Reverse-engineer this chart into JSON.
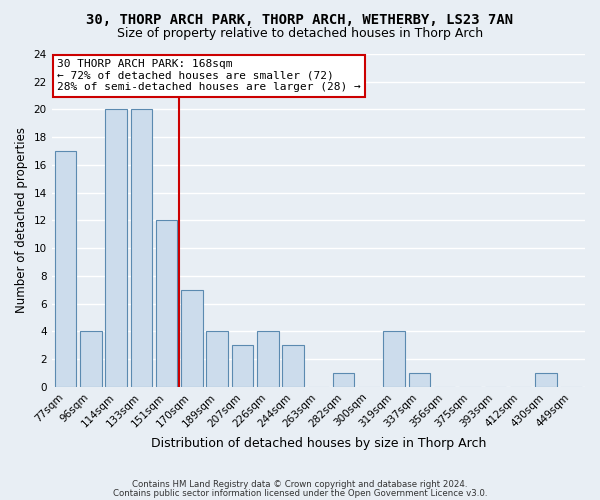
{
  "title": "30, THORP ARCH PARK, THORP ARCH, WETHERBY, LS23 7AN",
  "subtitle": "Size of property relative to detached houses in Thorp Arch",
  "xlabel": "Distribution of detached houses by size in Thorp Arch",
  "ylabel": "Number of detached properties",
  "bin_labels": [
    "77sqm",
    "96sqm",
    "114sqm",
    "133sqm",
    "151sqm",
    "170sqm",
    "189sqm",
    "207sqm",
    "226sqm",
    "244sqm",
    "263sqm",
    "282sqm",
    "300sqm",
    "319sqm",
    "337sqm",
    "356sqm",
    "375sqm",
    "393sqm",
    "412sqm",
    "430sqm",
    "449sqm"
  ],
  "bar_values": [
    17,
    4,
    20,
    20,
    12,
    7,
    4,
    3,
    4,
    3,
    0,
    1,
    0,
    4,
    1,
    0,
    0,
    0,
    0,
    1,
    0
  ],
  "bar_color": "#ccdcec",
  "bar_edge_color": "#5b8ab0",
  "vline_index": 5,
  "vline_color": "#cc0000",
  "annotation_title": "30 THORP ARCH PARK: 168sqm",
  "annotation_line1": "← 72% of detached houses are smaller (72)",
  "annotation_line2": "28% of semi-detached houses are larger (28) →",
  "annotation_box_color": "#ffffff",
  "annotation_box_edge": "#cc0000",
  "ylim": [
    0,
    24
  ],
  "yticks": [
    0,
    2,
    4,
    6,
    8,
    10,
    12,
    14,
    16,
    18,
    20,
    22,
    24
  ],
  "footer1": "Contains HM Land Registry data © Crown copyright and database right 2024.",
  "footer2": "Contains public sector information licensed under the Open Government Licence v3.0.",
  "bg_color": "#e8eef4",
  "plot_bg_color": "#e8eef4",
  "grid_color": "#ffffff",
  "title_fontsize": 10,
  "subtitle_fontsize": 9
}
